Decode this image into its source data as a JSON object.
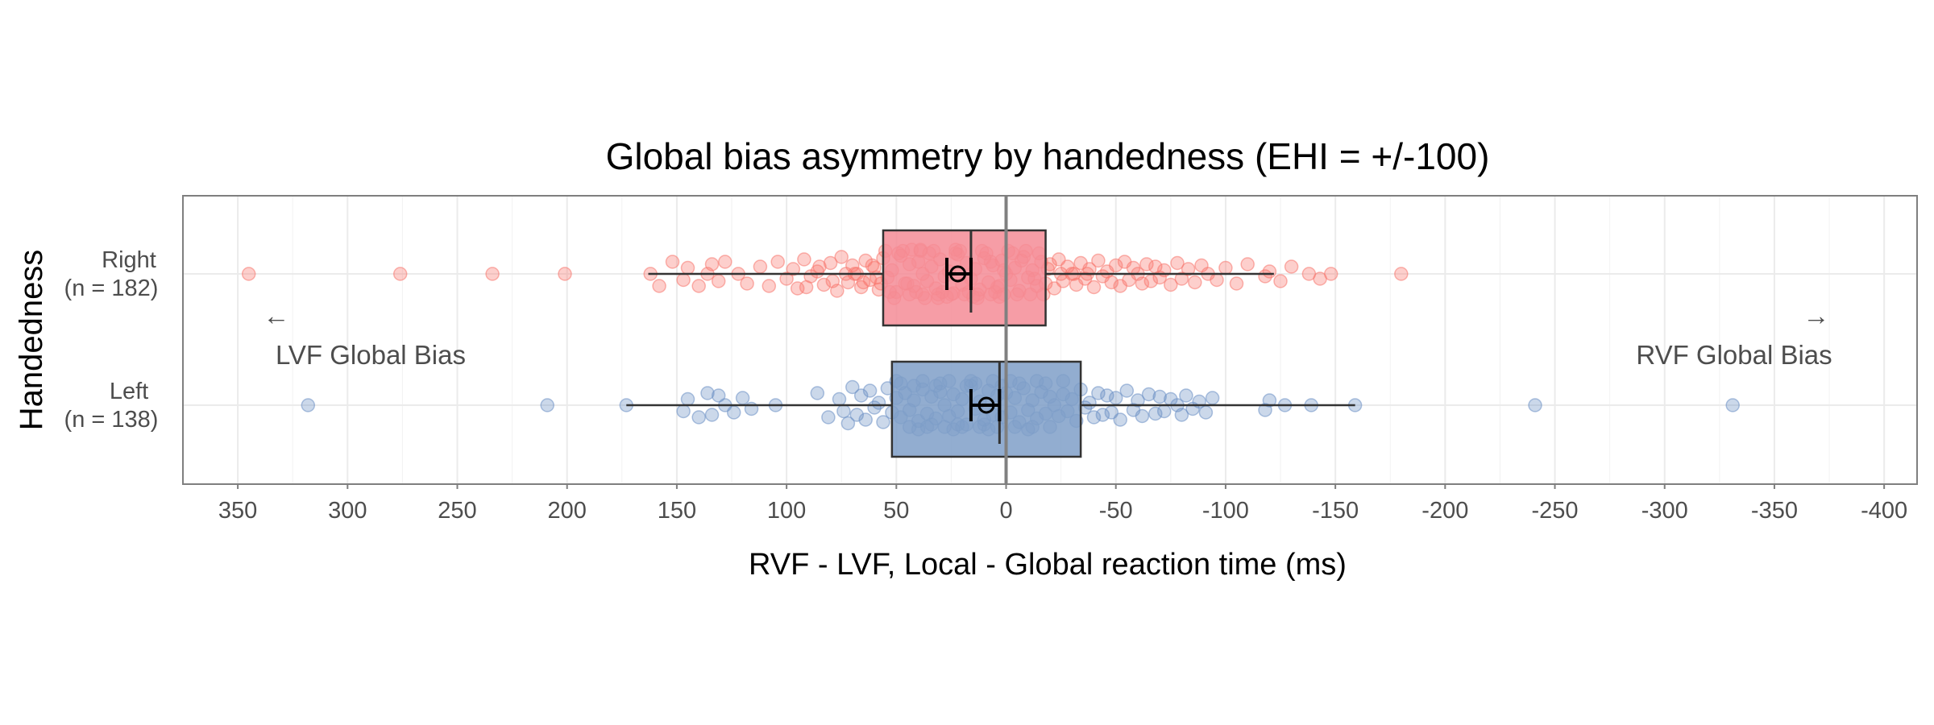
{
  "chart_data": {
    "type": "box",
    "orientation": "horizontal",
    "title": "Global bias asymmetry by handedness (EHI = +/-100)",
    "xlabel": "RVF - LVF, Local - Global reaction time (ms)",
    "ylabel": "Handedness",
    "x_reversed": true,
    "xlim": [
      375,
      -415
    ],
    "xticks": [
      350,
      300,
      250,
      200,
      150,
      100,
      50,
      0,
      -50,
      -100,
      -150,
      -200,
      -250,
      -300,
      -350,
      -400
    ],
    "xtick_labels": [
      "350",
      "300",
      "250",
      "200",
      "150",
      "100",
      "50",
      "0",
      "-50",
      "-100",
      "-150",
      "-200",
      "-250",
      "-300",
      "-350",
      "-400"
    ],
    "zero_line": 0,
    "annotations": [
      {
        "text": "LVF Global Bias",
        "arrow": "←",
        "side": "left"
      },
      {
        "text": "RVF Global Bias",
        "arrow": "→",
        "side": "right"
      }
    ],
    "series": [
      {
        "group": "Right",
        "label_line1": "Right",
        "label_line2": "(n = 182)",
        "n": 182,
        "color": "#f8766d",
        "box_fill": "#f48c97",
        "median": 16,
        "q1": -18,
        "q3": 56,
        "whisker_low": -122,
        "whisker_high": 163,
        "mean": 22,
        "mean_ci": [
          27,
          16
        ],
        "points": [
          345,
          276,
          234,
          201,
          162,
          158,
          152,
          147,
          145,
          140,
          136,
          134,
          131,
          128,
          122,
          118,
          112,
          108,
          104,
          100,
          97,
          95,
          92,
          89,
          86,
          83,
          80,
          77,
          75,
          72,
          70,
          68,
          66,
          64,
          62,
          60,
          58,
          56,
          54,
          52,
          50,
          48,
          46,
          44,
          42,
          40,
          38,
          36,
          34,
          32,
          30,
          28,
          26,
          24,
          22,
          20,
          18,
          16,
          14,
          12,
          10,
          8,
          6,
          4,
          2,
          0,
          -2,
          -4,
          -6,
          -8,
          -10,
          -12,
          -14,
          -16,
          -18,
          -20,
          -22,
          -24,
          -26,
          -28,
          -30,
          -32,
          -34,
          -36,
          -38,
          -40,
          -42,
          -44,
          -46,
          -48,
          -50,
          -52,
          -54,
          -56,
          -58,
          -60,
          -62,
          -64,
          -66,
          -68,
          -70,
          -72,
          -75,
          -78,
          -80,
          -83,
          -86,
          -89,
          -92,
          -96,
          -100,
          -105,
          -110,
          -118,
          -120,
          -125,
          -130,
          -138,
          -143,
          -148,
          -180,
          44,
          38,
          31,
          25,
          19,
          13,
          7,
          1,
          -5,
          -11,
          -17,
          49,
          35,
          23,
          9,
          -3,
          -15,
          27,
          15,
          3,
          55,
          47,
          39,
          33,
          21,
          11,
          -1,
          -9,
          5,
          17,
          29,
          41,
          53,
          57,
          45,
          37,
          43,
          51,
          39,
          31,
          23,
          13,
          7,
          3,
          1,
          59,
          61,
          65,
          69,
          73,
          79,
          85,
          91,
          -7,
          -13,
          -19,
          -25,
          -31,
          -37
        ],
        "point_jitter": [
          0.0,
          0.0,
          0.0,
          0.0,
          0.0,
          0.1,
          -0.1,
          0.05,
          -0.05,
          0.1,
          0.0,
          -0.08,
          0.06,
          -0.1,
          0.0,
          0.08,
          -0.06,
          0.1,
          -0.1,
          0.04,
          -0.04,
          0.12,
          -0.12,
          0.02,
          -0.02,
          0.09,
          -0.09,
          0.14,
          -0.14,
          0.07,
          -0.07,
          0.0,
          0.11,
          -0.11,
          0.05,
          -0.05,
          0.13,
          -0.13,
          0.03,
          -0.03,
          0.15,
          -0.15,
          0.08,
          -0.08,
          0.1,
          -0.1,
          0.0,
          0.06,
          -0.06,
          0.12,
          -0.12,
          0.02,
          -0.02,
          0.16,
          -0.16,
          0.09,
          -0.09,
          0.04,
          -0.04,
          0.13,
          -0.13,
          0.07,
          -0.07,
          0.11,
          -0.11,
          0.0,
          0.05,
          -0.05,
          0.14,
          -0.14,
          0.03,
          -0.03,
          0.1,
          -0.1,
          0.08,
          -0.08,
          0.12,
          -0.12,
          0.06,
          -0.06,
          0.0,
          0.09,
          -0.09,
          0.04,
          -0.04,
          0.11,
          -0.11,
          0.02,
          -0.02,
          0.07,
          -0.07,
          0.1,
          -0.1,
          0.05,
          -0.05,
          0.0,
          0.08,
          -0.08,
          0.06,
          -0.06,
          0.03,
          -0.03,
          0.09,
          -0.09,
          0.04,
          -0.04,
          0.07,
          -0.07,
          0.0,
          0.05,
          -0.05,
          0.08,
          -0.08,
          0.02,
          -0.02,
          0.06,
          -0.06,
          0.0,
          0.04,
          0.0,
          0.0,
          0.17,
          0.17,
          0.17,
          0.17,
          0.17,
          0.17,
          0.17,
          0.17,
          0.17,
          0.17,
          0.17,
          -0.17,
          -0.17,
          -0.17,
          -0.17,
          -0.17,
          -0.17,
          0.19,
          0.19,
          0.19,
          -0.19,
          -0.19,
          -0.19,
          -0.19,
          -0.19,
          -0.19,
          -0.19,
          -0.19,
          0.15,
          0.15,
          0.15,
          0.15,
          0.15,
          0.08,
          0.08,
          0.2,
          -0.2,
          0.2,
          -0.2,
          0.2,
          -0.2,
          0.2,
          -0.1,
          0.1,
          -0.03,
          0.03,
          -0.07,
          0.07,
          0.0,
          0.0,
          0.06,
          -0.06,
          0.11,
          -0.11,
          0.04,
          -0.04
        ]
      },
      {
        "group": "Left",
        "label_line1": "Left",
        "label_line2": "(n = 138)",
        "n": 138,
        "color": "#6b8fc4",
        "box_fill": "#7f9fc8",
        "median": 3,
        "q1": -34,
        "q3": 52,
        "whisker_low": -159,
        "whisker_high": 173,
        "mean": 9,
        "mean_ci": [
          16,
          3
        ],
        "points": [
          318,
          209,
          173,
          147,
          145,
          140,
          136,
          134,
          131,
          128,
          124,
          120,
          116,
          105,
          86,
          81,
          76,
          74,
          72,
          70,
          68,
          66,
          64,
          62,
          60,
          58,
          56,
          54,
          52,
          50,
          48,
          46,
          44,
          42,
          40,
          38,
          36,
          34,
          32,
          30,
          28,
          26,
          24,
          22,
          20,
          18,
          16,
          14,
          12,
          10,
          8,
          6,
          4,
          2,
          0,
          -2,
          -4,
          -6,
          -8,
          -10,
          -12,
          -14,
          -16,
          -18,
          -20,
          -22,
          -24,
          -26,
          -28,
          -30,
          -32,
          -34,
          -36,
          -38,
          -40,
          -42,
          -44,
          -46,
          -48,
          -50,
          -52,
          -55,
          -58,
          -60,
          -62,
          -65,
          -68,
          -70,
          -72,
          -75,
          -78,
          -80,
          -82,
          -85,
          -88,
          -91,
          -94,
          -118,
          -120,
          -127,
          -139,
          -159,
          -241,
          -331,
          44,
          36,
          28,
          20,
          12,
          4,
          -4,
          -12,
          -20,
          48,
          30,
          14,
          -6,
          -18,
          40,
          24,
          8,
          -10,
          50,
          38,
          26,
          16,
          6,
          -2,
          -14,
          -26,
          34,
          22,
          10,
          42,
          32,
          18,
          2
        ],
        "point_jitter": [
          0.0,
          0.0,
          0.0,
          0.05,
          -0.05,
          0.1,
          -0.1,
          0.08,
          -0.08,
          0.0,
          0.06,
          -0.06,
          0.03,
          0.0,
          -0.1,
          0.1,
          -0.05,
          0.05,
          0.15,
          -0.15,
          0.08,
          -0.08,
          0.12,
          -0.12,
          0.02,
          -0.02,
          0.14,
          -0.14,
          0.06,
          -0.06,
          0.1,
          -0.1,
          0.04,
          -0.04,
          0.13,
          -0.13,
          0.07,
          -0.07,
          0.11,
          -0.11,
          0.0,
          0.09,
          -0.09,
          0.05,
          -0.05,
          0.16,
          -0.16,
          0.03,
          -0.03,
          0.12,
          -0.12,
          0.08,
          -0.08,
          0.1,
          -0.1,
          0.06,
          -0.06,
          0.14,
          -0.14,
          0.04,
          -0.04,
          0.11,
          -0.11,
          0.07,
          -0.07,
          0.0,
          0.09,
          -0.09,
          0.05,
          -0.05,
          0.13,
          -0.13,
          0.02,
          -0.02,
          0.1,
          -0.1,
          0.08,
          -0.08,
          0.06,
          -0.06,
          0.12,
          -0.12,
          0.04,
          -0.04,
          0.09,
          -0.09,
          0.07,
          -0.07,
          0.05,
          -0.05,
          0.0,
          0.08,
          -0.08,
          0.03,
          -0.03,
          0.06,
          -0.06,
          0.04,
          -0.04,
          0.0,
          0.0,
          0.0,
          0.0,
          0.0,
          0.18,
          0.18,
          0.18,
          0.18,
          0.18,
          0.18,
          0.18,
          0.18,
          0.18,
          -0.18,
          -0.18,
          -0.18,
          -0.18,
          -0.18,
          0.2,
          0.2,
          0.2,
          0.2,
          -0.2,
          -0.2,
          -0.2,
          -0.2,
          -0.2,
          -0.2,
          -0.2,
          -0.2,
          0.16,
          0.16,
          0.16,
          -0.16,
          -0.16,
          -0.16,
          -0.16
        ]
      }
    ]
  }
}
